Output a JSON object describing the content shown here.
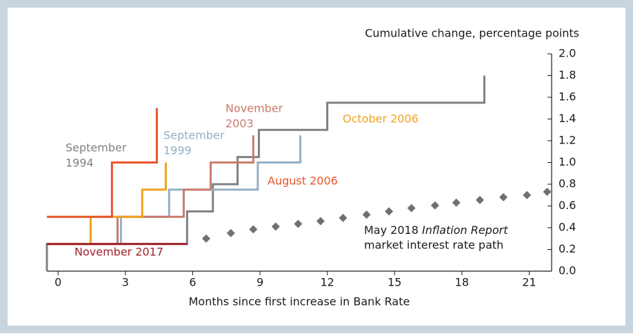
{
  "chart_data": {
    "type": "step",
    "y_axis_label": "Cumulative change, percentage points",
    "x_axis_label": "Months since first increase in Bank Rate",
    "xlim": [
      -0.5,
      22
    ],
    "xticks": [
      0,
      3,
      6,
      9,
      12,
      15,
      18,
      21
    ],
    "ylim": [
      0,
      2
    ],
    "yticks": [
      {
        "value": 0,
        "label": "0.0"
      },
      0.2,
      0.4,
      0.6,
      0.8,
      {
        "value": 1,
        "label": "1.0"
      },
      1.2,
      1.4,
      1.6,
      1.8,
      {
        "value": 2,
        "label": "2.0"
      }
    ],
    "series": [
      {
        "name": "October 2006",
        "color": "#808080",
        "x": [
          -0.5,
          -0.5,
          5.75,
          6.9,
          8.0,
          8.95,
          12.0,
          19.0
        ],
        "values": [
          0,
          0.25,
          0.55,
          0.8,
          1.05,
          1.3,
          1.55,
          1.8
        ]
      },
      {
        "name": "August 2006",
        "color": "#93afc4",
        "x": [
          -0.5,
          2.8,
          4.95,
          8.9,
          10.8
        ],
        "values": [
          0.25,
          0.5,
          0.75,
          1.0,
          1.25
        ]
      },
      {
        "name": "November 2003",
        "color": "#c97b6b",
        "x": [
          -0.5,
          2.65,
          5.6,
          6.8,
          8.7
        ],
        "values": [
          0.25,
          0.5,
          0.75,
          1.0,
          1.25
        ]
      },
      {
        "name": "September 1999",
        "color": "#f0a21e",
        "x": [
          -0.5,
          1.45,
          3.75,
          4.8
        ],
        "values": [
          0.25,
          0.5,
          0.75,
          1.0
        ]
      },
      {
        "name": "September 1994",
        "color": "#e8542a",
        "x": [
          -0.5,
          2.4,
          4.4
        ],
        "values": [
          0.5,
          1.0,
          1.5
        ]
      },
      {
        "name": "November 2017",
        "color": "#a3212a",
        "x": [
          -0.5,
          5.75
        ],
        "values": [
          0.25,
          0.25
        ]
      }
    ],
    "market_path": {
      "color": "#707070",
      "x": [
        6.6,
        7.7,
        8.7,
        9.7,
        10.7,
        11.7,
        12.7,
        13.75,
        14.75,
        15.75,
        16.8,
        17.75,
        18.8,
        19.85,
        20.9,
        21.8
      ],
      "values": [
        0.3,
        0.35,
        0.385,
        0.41,
        0.435,
        0.46,
        0.49,
        0.52,
        0.55,
        0.58,
        0.605,
        0.63,
        0.655,
        0.68,
        0.7,
        0.73
      ]
    },
    "series_labels": [
      [
        "September",
        "1994"
      ],
      [
        "September",
        "1999"
      ],
      [
        "November",
        "2003"
      ],
      [
        "October 2006"
      ],
      [
        "August 2006"
      ],
      [
        "November 2017"
      ]
    ],
    "market_label": [
      "May 2018 ",
      "Inflation Report",
      "market interest rate path"
    ]
  }
}
